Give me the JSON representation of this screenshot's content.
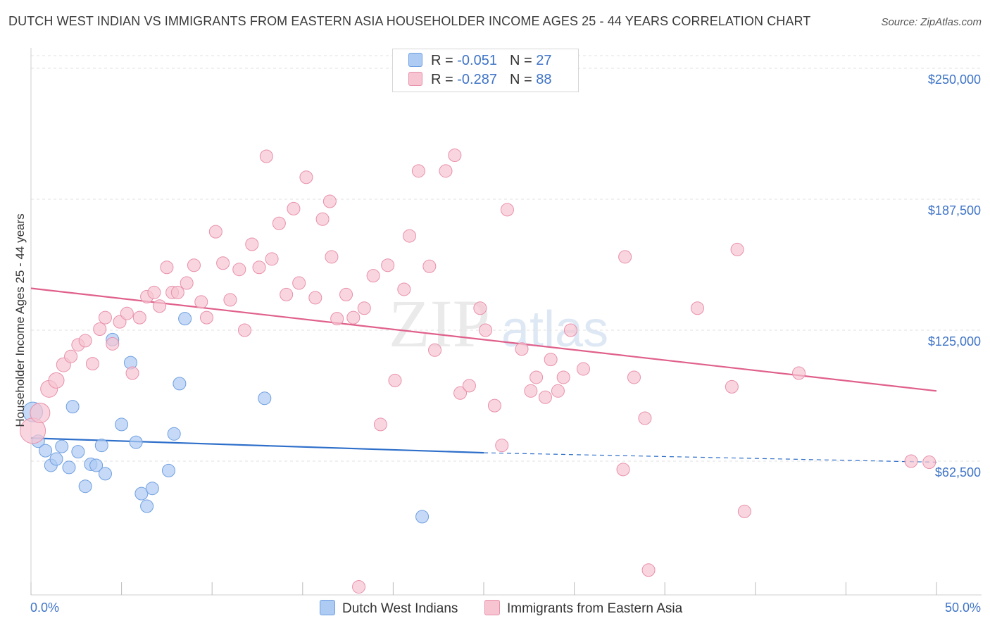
{
  "title": "DUTCH WEST INDIAN VS IMMIGRANTS FROM EASTERN ASIA HOUSEHOLDER INCOME AGES 25 - 44 YEARS CORRELATION CHART",
  "source": "Source: ZipAtlas.com",
  "watermark": {
    "zip": "ZIP",
    "atlas": "atlas"
  },
  "legend": {
    "rows": [
      {
        "r_label": "R = ",
        "r_value": "-0.051",
        "n_label": "N = ",
        "n_value": "27",
        "color": "#aecbf3",
        "border": "#6f9fe0"
      },
      {
        "r_label": "R = ",
        "r_value": "-0.287",
        "n_label": "N = ",
        "n_value": "88",
        "color": "#f7c4d2",
        "border": "#e890ab"
      }
    ]
  },
  "bottom_legend": [
    {
      "label": "Dutch West Indians",
      "color": "#aecbf3",
      "border": "#6f9fe0"
    },
    {
      "label": "Immigrants from Eastern Asia",
      "color": "#f7c4d2",
      "border": "#e890ab"
    }
  ],
  "chart_data": {
    "type": "scatter",
    "xlabel": "",
    "ylabel": "Householder Income Ages 25 - 44 years",
    "xlim": [
      0,
      50
    ],
    "ylim": [
      0,
      250000
    ],
    "x_tick_labels": {
      "min": "0.0%",
      "max": "50.0%"
    },
    "y_ticks": [
      {
        "value": 62500,
        "label": "$62,500"
      },
      {
        "value": 125000,
        "label": "$125,000"
      },
      {
        "value": 187500,
        "label": "$187,500"
      },
      {
        "value": 250000,
        "label": "$250,000"
      }
    ],
    "grid": true,
    "series": [
      {
        "name": "Dutch West Indians",
        "color": "#aecbf3",
        "stroke": "#6f9fe0",
        "trend_color": "#2e6fca",
        "trend": {
          "x0": 0,
          "y0": 73500,
          "x1": 25,
          "y1": 66500,
          "dash_to_x": 50,
          "dash_to_y": 62000
        },
        "points": [
          [
            0.1,
            86000,
            14
          ],
          [
            0.4,
            72000,
            9
          ],
          [
            0.8,
            67500,
            9
          ],
          [
            1.1,
            60500,
            9
          ],
          [
            1.4,
            63500,
            9
          ],
          [
            1.7,
            69500,
            9
          ],
          [
            2.1,
            59500,
            9
          ],
          [
            2.3,
            88500,
            9
          ],
          [
            2.6,
            67000,
            9
          ],
          [
            3.0,
            50500,
            9
          ],
          [
            3.3,
            61000,
            9
          ],
          [
            3.6,
            60500,
            9
          ],
          [
            3.9,
            70000,
            9
          ],
          [
            4.1,
            56500,
            9
          ],
          [
            4.5,
            120500,
            9
          ],
          [
            5.0,
            80000,
            9
          ],
          [
            5.5,
            109500,
            9
          ],
          [
            5.8,
            71500,
            9
          ],
          [
            6.1,
            47000,
            9
          ],
          [
            6.4,
            41000,
            9
          ],
          [
            6.7,
            49500,
            9
          ],
          [
            7.6,
            58000,
            9
          ],
          [
            7.9,
            75500,
            9
          ],
          [
            8.2,
            99500,
            9
          ],
          [
            8.5,
            130500,
            9
          ],
          [
            12.9,
            92500,
            9
          ],
          [
            21.6,
            36000,
            9
          ]
        ]
      },
      {
        "name": "Immigrants from Eastern Asia",
        "color": "#f7c4d2",
        "stroke": "#e890ab",
        "trend_color": "#e0608a",
        "trend": {
          "x0": 0,
          "y0": 145000,
          "x1": 50,
          "y1": 96000
        },
        "points": [
          [
            0.1,
            77000,
            18
          ],
          [
            0.5,
            85500,
            14
          ],
          [
            1.0,
            97000,
            12
          ],
          [
            1.4,
            101000,
            11
          ],
          [
            1.8,
            108500,
            10
          ],
          [
            2.2,
            112500,
            9
          ],
          [
            2.6,
            118000,
            9
          ],
          [
            3.0,
            120000,
            9
          ],
          [
            3.4,
            109000,
            9
          ],
          [
            3.8,
            125500,
            9
          ],
          [
            4.1,
            131000,
            9
          ],
          [
            4.5,
            118500,
            9
          ],
          [
            4.9,
            129000,
            9
          ],
          [
            5.3,
            133000,
            9
          ],
          [
            5.6,
            104500,
            9
          ],
          [
            6.0,
            131000,
            9
          ],
          [
            6.4,
            141000,
            9
          ],
          [
            6.8,
            143000,
            9
          ],
          [
            7.1,
            136500,
            9
          ],
          [
            7.5,
            155000,
            9
          ],
          [
            7.8,
            143000,
            9
          ],
          [
            8.1,
            143000,
            9
          ],
          [
            8.6,
            147500,
            9
          ],
          [
            9.0,
            156000,
            9
          ],
          [
            9.4,
            138500,
            9
          ],
          [
            9.7,
            131000,
            9
          ],
          [
            10.2,
            172000,
            9
          ],
          [
            10.6,
            157000,
            9
          ],
          [
            11.0,
            139500,
            9
          ],
          [
            11.5,
            154000,
            9
          ],
          [
            11.8,
            125000,
            9
          ],
          [
            12.2,
            166000,
            9
          ],
          [
            12.6,
            155000,
            9
          ],
          [
            13.0,
            208000,
            9
          ],
          [
            13.3,
            159000,
            9
          ],
          [
            13.7,
            176000,
            9
          ],
          [
            14.1,
            142000,
            9
          ],
          [
            14.5,
            183000,
            9
          ],
          [
            14.8,
            147500,
            9
          ],
          [
            15.2,
            198000,
            9
          ],
          [
            15.7,
            140500,
            9
          ],
          [
            16.1,
            178000,
            9
          ],
          [
            16.5,
            186500,
            9
          ],
          [
            16.9,
            130500,
            9
          ],
          [
            17.4,
            142000,
            9
          ],
          [
            17.8,
            131000,
            9
          ],
          [
            18.4,
            135500,
            9
          ],
          [
            18.9,
            151000,
            9
          ],
          [
            19.3,
            80000,
            9
          ],
          [
            19.7,
            156000,
            9
          ],
          [
            20.1,
            101000,
            9
          ],
          [
            20.6,
            144500,
            9
          ],
          [
            20.9,
            170000,
            9
          ],
          [
            21.4,
            201000,
            9
          ],
          [
            22.0,
            155500,
            9
          ],
          [
            22.3,
            115500,
            9
          ],
          [
            22.9,
            201000,
            9
          ],
          [
            23.4,
            208500,
            9
          ],
          [
            23.7,
            95000,
            9
          ],
          [
            24.2,
            98500,
            9
          ],
          [
            24.8,
            135500,
            9
          ],
          [
            25.1,
            125000,
            9
          ],
          [
            25.6,
            89000,
            9
          ],
          [
            26.0,
            70000,
            9
          ],
          [
            26.3,
            182500,
            9
          ],
          [
            27.1,
            116000,
            9
          ],
          [
            27.6,
            96000,
            9
          ],
          [
            27.9,
            102500,
            9
          ],
          [
            28.4,
            93000,
            9
          ],
          [
            28.7,
            111000,
            9
          ],
          [
            29.1,
            96000,
            9
          ],
          [
            29.4,
            102500,
            9
          ],
          [
            29.8,
            125000,
            9
          ],
          [
            30.5,
            106500,
            9
          ],
          [
            32.8,
            160000,
            9
          ],
          [
            32.7,
            58500,
            9
          ],
          [
            33.3,
            102500,
            9
          ],
          [
            33.9,
            83000,
            9
          ],
          [
            34.1,
            10500,
            9
          ],
          [
            36.8,
            135500,
            9
          ],
          [
            38.7,
            98000,
            9
          ],
          [
            39.0,
            163500,
            9
          ],
          [
            39.4,
            38500,
            9
          ],
          [
            42.4,
            104500,
            9
          ],
          [
            48.6,
            62500,
            9
          ],
          [
            49.6,
            62000,
            9
          ],
          [
            18.1,
            2500,
            9
          ],
          [
            16.6,
            160000,
            9
          ]
        ]
      }
    ]
  }
}
